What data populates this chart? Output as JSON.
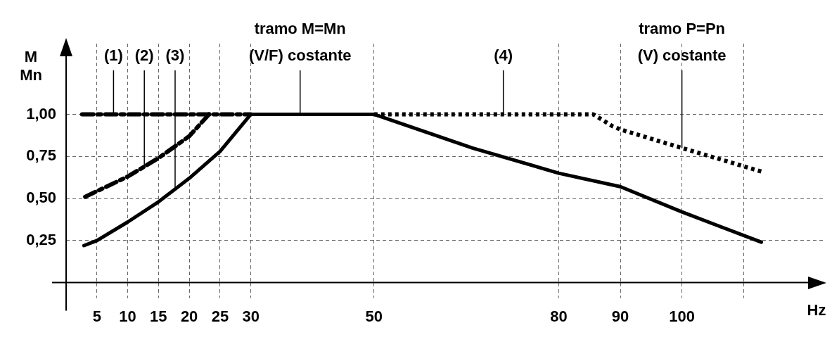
{
  "chart_data": {
    "type": "line",
    "xlabel": "Hz",
    "ylabel": "M\nMn",
    "xlim": [
      0,
      123
    ],
    "xticks": [
      5,
      10,
      15,
      20,
      25,
      30,
      50,
      80,
      90,
      100,
      {
        "value": 110,
        "label": null
      }
    ],
    "ylim": [
      0,
      1.42
    ],
    "yticks": [
      {
        "value": 0.25,
        "label": "0,25"
      },
      {
        "value": 0.5,
        "label": "0,50"
      },
      {
        "value": 0.75,
        "label": "0,75"
      },
      {
        "value": 1,
        "label": "1,00"
      }
    ],
    "grid": true,
    "legend": false,
    "marker": "none",
    "series": [
      {
        "color": "#000000",
        "line_style": "dashed",
        "x": [
          2.6,
          30
        ],
        "values": [
          1,
          1
        ]
      },
      {
        "color": "#000000",
        "line_style": "dashed",
        "x": [
          3.1,
          10,
          15,
          20,
          23.2
        ],
        "values": [
          0.51,
          0.63,
          0.74,
          0.87,
          1
        ]
      },
      {
        "color": "#000000",
        "line_style": "solid",
        "x": [
          2.9,
          5,
          10,
          15,
          20,
          25,
          30,
          50,
          58,
          66,
          80,
          90,
          100,
          112.9
        ],
        "values": [
          0.22,
          0.25,
          0.36,
          0.48,
          0.62,
          0.78,
          1,
          1,
          0.9,
          0.8,
          0.65,
          0.57,
          0.42,
          0.24
        ]
      },
      {
        "color": "#000000",
        "line_style": "dotted",
        "x": [
          50,
          85.6,
          88.7,
          90,
          100,
          112.9
        ],
        "values": [
          1,
          1,
          0.93,
          0.91,
          0.8,
          0.66
        ]
      }
    ],
    "annotations": [
      {
        "text": "(1)",
        "x": 7.7,
        "y": 1
      },
      {
        "text": "(2)",
        "x": 12.7,
        "y": 0.69
      },
      {
        "text": "(3)",
        "x": 17.7,
        "y": 0.55
      },
      {
        "text": "(4)",
        "x": 71,
        "y": 1
      },
      {
        "text": "tramo M=Mn\n(V/F) costante",
        "x": 38,
        "y": 1
      },
      {
        "text": "tramo P=Pn\n(V) costante",
        "x": 100,
        "y": 0.8
      }
    ]
  }
}
